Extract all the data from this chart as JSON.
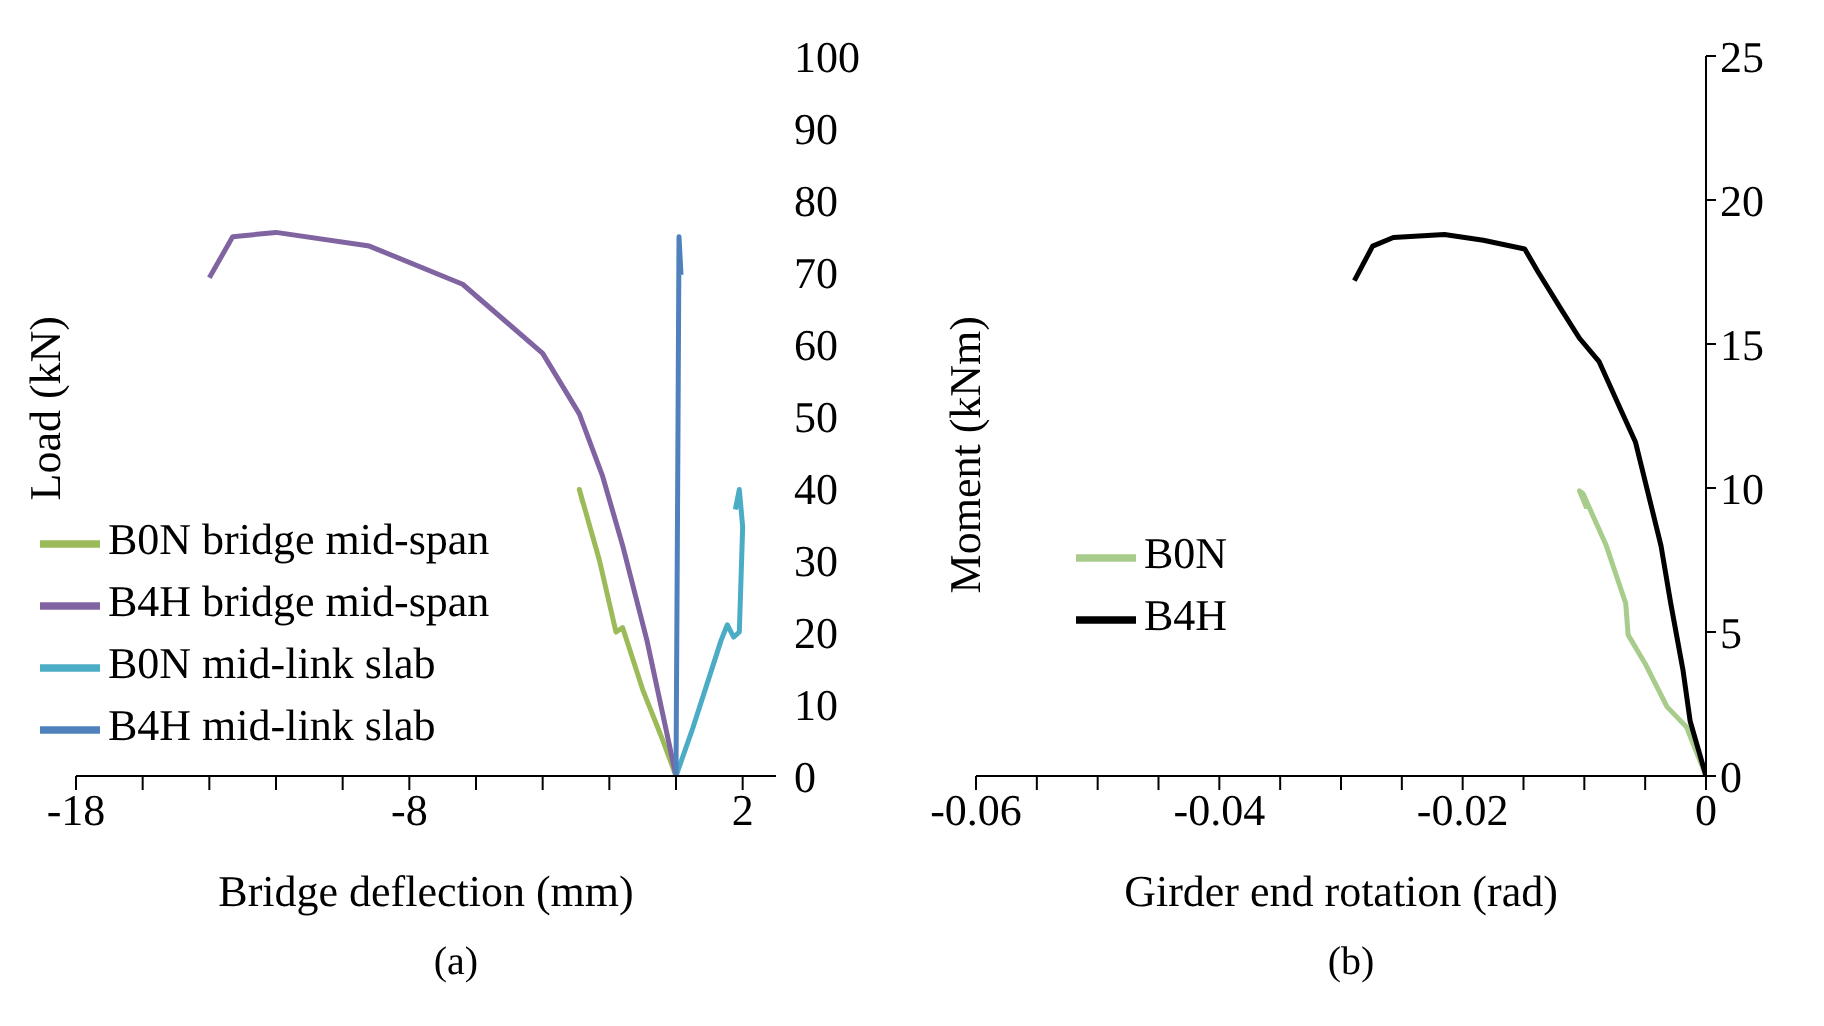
{
  "chart_data": [
    {
      "type": "line",
      "xlabel": "Bridge deflection (mm)",
      "ylabel": "Load (kN)",
      "annotations": [
        "(a)"
      ],
      "legend": "bottom left",
      "marker": "none",
      "grid": false,
      "xlim": [
        -18,
        3
      ],
      "xticks": [
        -18,
        {
          "value": -16,
          "label": null
        },
        {
          "value": -14,
          "label": null
        },
        {
          "value": -12,
          "label": null
        },
        {
          "value": -10,
          "label": null
        },
        -8,
        {
          "value": -6,
          "label": null
        },
        {
          "value": -4,
          "label": null
        },
        {
          "value": -2,
          "label": null
        },
        {
          "value": 0,
          "label": null
        },
        2
      ],
      "ylim": [
        0,
        100
      ],
      "yticks": [
        0,
        10,
        20,
        30,
        40,
        50,
        60,
        70,
        80,
        90,
        100
      ],
      "series": [
        {
          "name": "B0N bridge mid-span",
          "color": "#9bbb59",
          "x": [
            0,
            -0.4,
            -1.0,
            -1.6,
            -1.8,
            -2.3,
            -2.9,
            -2.8
          ],
          "values": [
            0,
            5,
            12,
            20.6,
            20,
            30,
            39.8,
            38
          ]
        },
        {
          "name": "B4H bridge mid-span",
          "color": "#8064a2",
          "x": [
            0,
            -0.87,
            -1.6,
            -2.2,
            -2.9,
            -4.0,
            -6.4,
            -9.2,
            -12.0,
            -13.3,
            -14.0
          ],
          "values": [
            0,
            18.8,
            32,
            41.6,
            50.3,
            58.7,
            68.3,
            73.6,
            75.5,
            74.9,
            69.2
          ]
        },
        {
          "name": "B0N mid-link slab",
          "color": "#4bacc6",
          "x": [
            0,
            0.5,
            1.35,
            1.54,
            1.73,
            1.9,
            2.0,
            1.9,
            1.78
          ],
          "values": [
            0,
            6.6,
            18.8,
            21,
            19.3,
            20,
            34.6,
            39.8,
            37
          ]
        },
        {
          "name": "B4H mid-link slab",
          "color": "#4f81bd",
          "x": [
            0,
            0.05,
            0.09,
            0.15
          ],
          "values": [
            0,
            40,
            74.9,
            69.6
          ]
        }
      ]
    },
    {
      "type": "line",
      "xlabel": "Girder end rotation (rad)",
      "ylabel": "Moment (kNm)",
      "annotations": [
        "(b)"
      ],
      "legend": "left",
      "marker": "none",
      "grid": false,
      "xlim": [
        -0.06,
        0
      ],
      "xticks": [
        -0.06,
        {
          "value": -0.055,
          "label": null
        },
        {
          "value": -0.05,
          "label": null
        },
        {
          "value": -0.045,
          "label": null
        },
        -0.04,
        {
          "value": -0.035,
          "label": null
        },
        {
          "value": -0.03,
          "label": null
        },
        {
          "value": -0.025,
          "label": null
        },
        -0.02,
        {
          "value": -0.015,
          "label": null
        },
        {
          "value": -0.01,
          "label": null
        },
        {
          "value": -0.005,
          "label": null
        },
        0
      ],
      "ylim": [
        0,
        25
      ],
      "yticks": [
        0,
        5,
        10,
        15,
        20,
        25
      ],
      "series": [
        {
          "name": "B0N",
          "color": "#a8cc8c",
          "x": [
            0,
            -0.0016,
            -0.0032,
            -0.005,
            -0.0064,
            -0.0066,
            -0.0082,
            -0.0101,
            -0.0104,
            -0.0098
          ],
          "values": [
            0,
            1.7,
            2.4,
            3.9,
            4.9,
            6,
            8,
            9.8,
            9.9,
            9.3
          ]
        },
        {
          "name": "B4H",
          "color": "#000000",
          "x": [
            0,
            -0.0013,
            -0.0019,
            -0.0029,
            -0.0037,
            -0.0058,
            -0.0072,
            -0.0088,
            -0.0104,
            -0.0119,
            -0.0138,
            -0.0149,
            -0.0183,
            -0.0215,
            -0.0257,
            -0.0274,
            -0.0289
          ],
          "values": [
            0,
            1.9,
            3.7,
            6.0,
            8.0,
            11.6,
            12.9,
            14.4,
            15.2,
            16.2,
            17.5,
            18.3,
            18.6,
            18.8,
            18.7,
            18.4,
            17.2
          ]
        }
      ]
    }
  ]
}
